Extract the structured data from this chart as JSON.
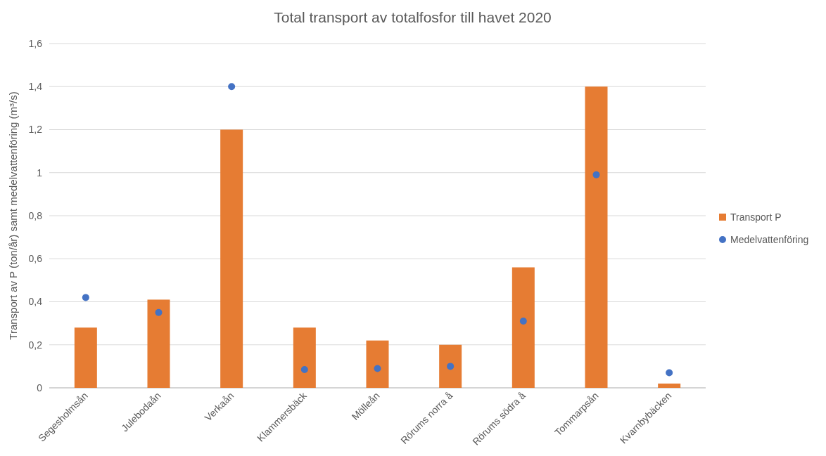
{
  "chart_data": {
    "type": "bar",
    "title": "Total transport av totalfosfor till havet 2020",
    "ylabel": "Transport av P (ton/år) samt medelvattenföring (m³/s)",
    "categories": [
      "Segesholmsån",
      "Julebodaån",
      "Verkaån",
      "Klammersbäck",
      "Mölleån",
      "Rörums norra å",
      "Rörums södra å",
      "Tommarpsån",
      "Kvarnbybäcken"
    ],
    "series": [
      {
        "name": "Transport P",
        "color": "#e67c33",
        "values": [
          0.28,
          0.41,
          1.2,
          0.28,
          0.22,
          0.2,
          0.56,
          1.4,
          0.02
        ]
      },
      {
        "name": "Medelvattenföring",
        "type": "scatter",
        "color": "#4472c4",
        "marker": "circle",
        "x": [
          "Segesholmsån",
          "Julebodaån",
          "Verkaån",
          "Klammersbäck",
          "Mölleån",
          "Rörums norra å",
          "Rörums södra å",
          "Tommarpsån",
          "Kvarnbybäcken"
        ],
        "values": [
          0.42,
          0.35,
          1.4,
          0.085,
          0.09,
          0.1,
          0.31,
          0.99,
          0.07
        ]
      }
    ],
    "ylim": [
      0,
      1.6
    ],
    "yticks": [
      0,
      {
        "value": 0.2,
        "label": "0,2"
      },
      {
        "value": 0.4,
        "label": "0,4"
      },
      {
        "value": 0.6,
        "label": "0,6"
      },
      {
        "value": 0.8,
        "label": "0,8"
      },
      1,
      {
        "value": 1.2,
        "label": "1,2"
      },
      {
        "value": 1.4,
        "label": "1,4"
      },
      {
        "value": 1.6,
        "label": "1,6"
      }
    ],
    "grid": "y",
    "legend": "right"
  }
}
